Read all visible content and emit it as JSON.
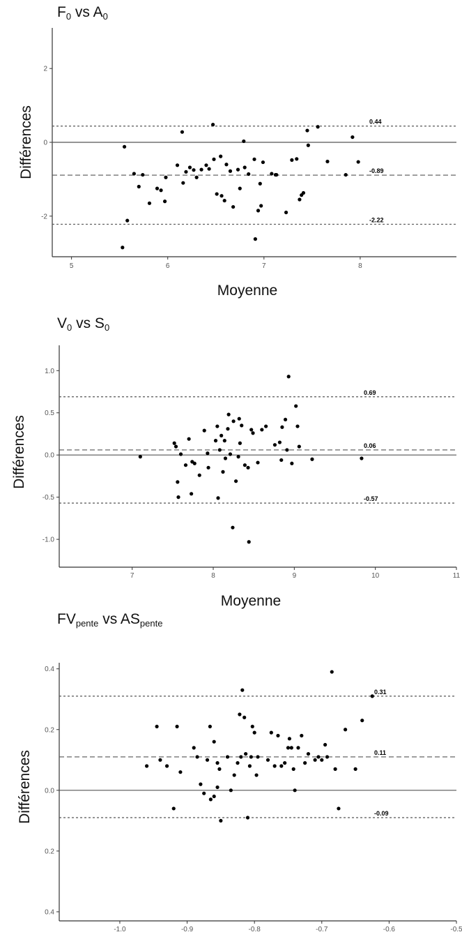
{
  "chart_data": [
    {
      "type": "scatter",
      "title_parts": [
        [
          "F",
          "0"
        ],
        " vs ",
        [
          "A",
          "0"
        ]
      ],
      "xlabel": "Moyenne",
      "ylabel": "Différences",
      "xlim": [
        4.8,
        9.0
      ],
      "ylim": [
        -3.1,
        3.1
      ],
      "xticks": [
        "5",
        "6",
        "7",
        "8"
      ],
      "yticks": [
        "-2",
        "0",
        "2"
      ],
      "grid": false,
      "reference_lines": [
        {
          "value": 0.44,
          "label": "0.44",
          "style": "dotted"
        },
        {
          "value": -0.89,
          "label": "-0.89",
          "style": "dashed"
        },
        {
          "value": -2.22,
          "label": "-2.22",
          "style": "dotted"
        }
      ],
      "zero_line": true,
      "points": [
        [
          5.53,
          -2.85
        ],
        [
          5.55,
          -0.12
        ],
        [
          5.58,
          -2.12
        ],
        [
          5.65,
          -0.85
        ],
        [
          5.7,
          -1.2
        ],
        [
          5.74,
          -0.88
        ],
        [
          5.81,
          -1.65
        ],
        [
          5.89,
          -1.25
        ],
        [
          5.93,
          -1.3
        ],
        [
          5.97,
          -1.6
        ],
        [
          5.98,
          -0.95
        ],
        [
          6.1,
          -0.62
        ],
        [
          6.15,
          0.28
        ],
        [
          6.16,
          -1.1
        ],
        [
          6.19,
          -0.8
        ],
        [
          6.23,
          -0.68
        ],
        [
          6.27,
          -0.75
        ],
        [
          6.3,
          -0.95
        ],
        [
          6.35,
          -0.74
        ],
        [
          6.4,
          -0.62
        ],
        [
          6.43,
          -0.72
        ],
        [
          6.47,
          0.48
        ],
        [
          6.48,
          -0.46
        ],
        [
          6.51,
          -1.4
        ],
        [
          6.55,
          -0.38
        ],
        [
          6.56,
          -1.45
        ],
        [
          6.59,
          -1.58
        ],
        [
          6.61,
          -0.6
        ],
        [
          6.65,
          -0.78
        ],
        [
          6.68,
          -1.75
        ],
        [
          6.73,
          -0.74
        ],
        [
          6.75,
          -1.25
        ],
        [
          6.79,
          0.03
        ],
        [
          6.8,
          -0.68
        ],
        [
          6.84,
          -0.86
        ],
        [
          6.9,
          -0.46
        ],
        [
          6.91,
          -2.62
        ],
        [
          6.94,
          -1.85
        ],
        [
          6.96,
          -1.12
        ],
        [
          6.97,
          -1.72
        ],
        [
          6.99,
          -0.54
        ],
        [
          7.08,
          -0.85
        ],
        [
          7.12,
          -0.88
        ],
        [
          7.13,
          -0.88
        ],
        [
          7.23,
          -1.9
        ],
        [
          7.29,
          -0.48
        ],
        [
          7.34,
          -0.45
        ],
        [
          7.37,
          -1.55
        ],
        [
          7.39,
          -1.43
        ],
        [
          7.41,
          -1.37
        ],
        [
          7.45,
          0.32
        ],
        [
          7.46,
          -0.08
        ],
        [
          7.56,
          0.42
        ],
        [
          7.66,
          -0.52
        ],
        [
          7.85,
          -0.88
        ],
        [
          7.92,
          0.14
        ],
        [
          7.98,
          -0.53
        ]
      ]
    },
    {
      "type": "scatter",
      "title_parts": [
        [
          "V",
          "0"
        ],
        " vs ",
        [
          "S",
          "0"
        ]
      ],
      "xlabel": "Moyenne",
      "ylabel": "Différences",
      "xlim": [
        6.1,
        11.0
      ],
      "ylim": [
        -1.33,
        1.3
      ],
      "xticks": [
        "7",
        "8",
        "9",
        "10",
        "11"
      ],
      "yticks": [
        "-1.0",
        "-0.5",
        "0.0",
        "0.5",
        "1.0"
      ],
      "grid": false,
      "reference_lines": [
        {
          "value": 0.69,
          "label": "0.69",
          "style": "dotted"
        },
        {
          "value": 0.06,
          "label": "0.06",
          "style": "dashed"
        },
        {
          "value": -0.57,
          "label": "-0.57",
          "style": "dotted"
        }
      ],
      "zero_line": true,
      "points": [
        [
          7.1,
          -0.02
        ],
        [
          7.52,
          0.14
        ],
        [
          7.54,
          0.1
        ],
        [
          7.56,
          -0.32
        ],
        [
          7.57,
          -0.5
        ],
        [
          7.6,
          0.01
        ],
        [
          7.66,
          -0.12
        ],
        [
          7.7,
          0.19
        ],
        [
          7.73,
          -0.46
        ],
        [
          7.74,
          -0.08
        ],
        [
          7.77,
          -0.1
        ],
        [
          7.83,
          -0.24
        ],
        [
          7.89,
          0.29
        ],
        [
          7.93,
          0.02
        ],
        [
          7.94,
          -0.15
        ],
        [
          8.03,
          0.17
        ],
        [
          8.05,
          0.34
        ],
        [
          8.06,
          -0.51
        ],
        [
          8.08,
          0.06
        ],
        [
          8.1,
          0.23
        ],
        [
          8.12,
          -0.2
        ],
        [
          8.14,
          0.17
        ],
        [
          8.15,
          -0.04
        ],
        [
          8.18,
          0.31
        ],
        [
          8.19,
          0.48
        ],
        [
          8.21,
          0.01
        ],
        [
          8.24,
          -0.86
        ],
        [
          8.25,
          0.4
        ],
        [
          8.28,
          -0.31
        ],
        [
          8.31,
          -0.02
        ],
        [
          8.32,
          0.43
        ],
        [
          8.33,
          0.14
        ],
        [
          8.35,
          0.35
        ],
        [
          8.39,
          -0.12
        ],
        [
          8.43,
          -0.15
        ],
        [
          8.44,
          -1.03
        ],
        [
          8.47,
          0.3
        ],
        [
          8.49,
          0.26
        ],
        [
          8.55,
          -0.09
        ],
        [
          8.6,
          0.3
        ],
        [
          8.65,
          0.34
        ],
        [
          8.76,
          0.12
        ],
        [
          8.82,
          0.15
        ],
        [
          8.84,
          -0.06
        ],
        [
          8.85,
          0.33
        ],
        [
          8.89,
          0.42
        ],
        [
          8.91,
          0.06
        ],
        [
          8.93,
          0.93
        ],
        [
          8.97,
          -0.1
        ],
        [
          9.02,
          0.58
        ],
        [
          9.04,
          0.34
        ],
        [
          9.06,
          0.1
        ],
        [
          9.22,
          -0.05
        ],
        [
          9.83,
          -0.04
        ]
      ]
    },
    {
      "type": "scatter",
      "title_parts": [
        [
          "FV",
          "pente"
        ],
        " vs ",
        [
          "AS",
          "pente"
        ]
      ],
      "xlabel": "Moyenne",
      "ylabel": "Différences",
      "xlim": [
        -1.09,
        -0.5
      ],
      "ylim": [
        -0.43,
        0.42
      ],
      "xticks": [
        "-1.0",
        "-0.9",
        "-0.8",
        "-0.7",
        "-0.6",
        "-0.5"
      ],
      "yticks": [
        "0.4",
        "0.2",
        "0.0",
        "0.2",
        "0.4"
      ],
      "grid": false,
      "reference_lines": [
        {
          "value": 0.31,
          "label": "0.31",
          "style": "dotted"
        },
        {
          "value": 0.11,
          "label": "0.11",
          "style": "dashed"
        },
        {
          "value": -0.09,
          "label": "-0.09",
          "style": "dotted"
        }
      ],
      "zero_line": true,
      "points": [
        [
          -0.96,
          0.08
        ],
        [
          -0.945,
          0.21
        ],
        [
          -0.94,
          0.1
        ],
        [
          -0.93,
          0.08
        ],
        [
          -0.92,
          -0.06
        ],
        [
          -0.915,
          0.21
        ],
        [
          -0.91,
          0.06
        ],
        [
          -0.89,
          0.14
        ],
        [
          -0.885,
          0.11
        ],
        [
          -0.88,
          0.02
        ],
        [
          -0.875,
          -0.01
        ],
        [
          -0.87,
          0.1
        ],
        [
          -0.866,
          0.21
        ],
        [
          -0.865,
          -0.03
        ],
        [
          -0.86,
          0.16
        ],
        [
          -0.86,
          -0.02
        ],
        [
          -0.855,
          0.09
        ],
        [
          -0.855,
          0.01
        ],
        [
          -0.852,
          0.07
        ],
        [
          -0.85,
          -0.1
        ],
        [
          -0.84,
          0.11
        ],
        [
          -0.835,
          0.0
        ],
        [
          -0.83,
          0.05
        ],
        [
          -0.825,
          0.09
        ],
        [
          -0.822,
          0.25
        ],
        [
          -0.82,
          0.11
        ],
        [
          -0.818,
          0.33
        ],
        [
          -0.815,
          0.24
        ],
        [
          -0.813,
          0.12
        ],
        [
          -0.81,
          -0.09
        ],
        [
          -0.807,
          0.08
        ],
        [
          -0.805,
          0.11
        ],
        [
          -0.803,
          0.21
        ],
        [
          -0.8,
          0.19
        ],
        [
          -0.797,
          0.05
        ],
        [
          -0.795,
          0.11
        ],
        [
          -0.78,
          0.1
        ],
        [
          -0.775,
          0.19
        ],
        [
          -0.77,
          0.08
        ],
        [
          -0.765,
          0.18
        ],
        [
          -0.76,
          0.08
        ],
        [
          -0.755,
          0.09
        ],
        [
          -0.75,
          0.14
        ],
        [
          -0.748,
          0.17
        ],
        [
          -0.745,
          0.14
        ],
        [
          -0.742,
          0.07
        ],
        [
          -0.74,
          0.0
        ],
        [
          -0.735,
          0.14
        ],
        [
          -0.73,
          0.18
        ],
        [
          -0.725,
          0.09
        ],
        [
          -0.72,
          0.12
        ],
        [
          -0.71,
          0.1
        ],
        [
          -0.705,
          0.11
        ],
        [
          -0.7,
          0.1
        ],
        [
          -0.695,
          0.15
        ],
        [
          -0.692,
          0.11
        ],
        [
          -0.685,
          0.39
        ],
        [
          -0.68,
          0.07
        ],
        [
          -0.675,
          -0.06
        ],
        [
          -0.665,
          0.2
        ],
        [
          -0.65,
          0.07
        ],
        [
          -0.64,
          0.23
        ],
        [
          -0.625,
          0.31
        ]
      ]
    }
  ]
}
